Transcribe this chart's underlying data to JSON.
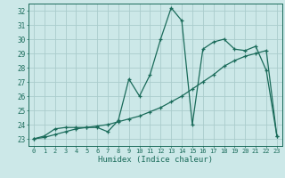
{
  "xlabel": "Humidex (Indice chaleur)",
  "bg_color": "#cce8e8",
  "grid_color": "#aacccc",
  "line_color": "#1a6b5a",
  "xlim": [
    -0.5,
    23.5
  ],
  "ylim": [
    22.5,
    32.5
  ],
  "xticks": [
    0,
    1,
    2,
    3,
    4,
    5,
    6,
    7,
    8,
    9,
    10,
    11,
    12,
    13,
    14,
    15,
    16,
    17,
    18,
    19,
    20,
    21,
    22,
    23
  ],
  "yticks": [
    23,
    24,
    25,
    26,
    27,
    28,
    29,
    30,
    31,
    32
  ],
  "series1_x": [
    0,
    1,
    2,
    3,
    4,
    5,
    6,
    7,
    8,
    9,
    10,
    11,
    12,
    13,
    14,
    15,
    16,
    17,
    18,
    19,
    20,
    21,
    22,
    23
  ],
  "series1_y": [
    23.0,
    23.2,
    23.7,
    23.8,
    23.8,
    23.8,
    23.8,
    23.5,
    24.3,
    27.2,
    26.0,
    27.5,
    30.0,
    32.2,
    31.3,
    24.0,
    29.3,
    29.8,
    30.0,
    29.3,
    29.2,
    29.5,
    27.8,
    23.2
  ],
  "series2_x": [
    0,
    1,
    2,
    3,
    4,
    5,
    6,
    7,
    8,
    9,
    10,
    11,
    12,
    13,
    14,
    15,
    16,
    17,
    18,
    19,
    20,
    21,
    22,
    23
  ],
  "series2_y": [
    23.0,
    23.1,
    23.3,
    23.5,
    23.7,
    23.8,
    23.9,
    24.0,
    24.2,
    24.4,
    24.6,
    24.9,
    25.2,
    25.6,
    26.0,
    26.5,
    27.0,
    27.5,
    28.1,
    28.5,
    28.8,
    29.0,
    29.2,
    23.2
  ]
}
